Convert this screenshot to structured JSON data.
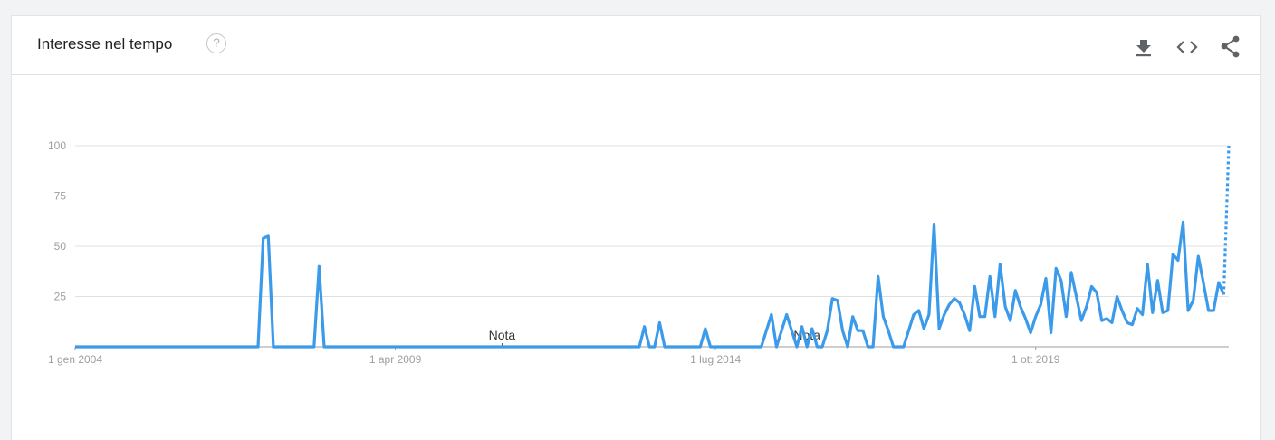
{
  "header": {
    "title": "Interesse nel tempo",
    "help_glyph": "?",
    "actions": [
      {
        "name": "download-icon"
      },
      {
        "name": "embed-icon"
      },
      {
        "name": "share-icon"
      }
    ]
  },
  "colors": {
    "line": "#3b9bea",
    "grid": "#e0e0e0",
    "axis": "#9e9e9e"
  },
  "chart_data": {
    "type": "line",
    "title": "Interesse nel tempo",
    "x_start": "2004-01",
    "x_step": "1 month",
    "x_ticks": [
      {
        "label": "1 gen 2004",
        "index": 0
      },
      {
        "label": "1 apr 2009",
        "index": 63
      },
      {
        "label": "1 lug 2014",
        "index": 126
      },
      {
        "label": "1 ott 2019",
        "index": 189
      }
    ],
    "ylim": [
      0,
      100
    ],
    "y_ticks": [
      25,
      50,
      75,
      100
    ],
    "grid": true,
    "annotations": [
      {
        "label": "Nota",
        "index": 84
      },
      {
        "label": "Nota",
        "index": 144
      }
    ],
    "series": [
      {
        "values": [
          0,
          0,
          0,
          0,
          0,
          0,
          0,
          0,
          0,
          0,
          0,
          0,
          0,
          0,
          0,
          0,
          0,
          0,
          0,
          0,
          0,
          0,
          0,
          0,
          0,
          0,
          0,
          0,
          0,
          0,
          0,
          0,
          0,
          0,
          0,
          0,
          0,
          54,
          55,
          0,
          0,
          0,
          0,
          0,
          0,
          0,
          0,
          0,
          40,
          0,
          0,
          0,
          0,
          0,
          0,
          0,
          0,
          0,
          0,
          0,
          0,
          0,
          0,
          0,
          0,
          0,
          0,
          0,
          0,
          0,
          0,
          0,
          0,
          0,
          0,
          0,
          0,
          0,
          0,
          0,
          0,
          0,
          0,
          0,
          0,
          0,
          0,
          0,
          0,
          0,
          0,
          0,
          0,
          0,
          0,
          0,
          0,
          0,
          0,
          0,
          0,
          0,
          0,
          0,
          0,
          0,
          0,
          0,
          0,
          0,
          0,
          0,
          10,
          0,
          0,
          12,
          0,
          0,
          0,
          0,
          0,
          0,
          0,
          0,
          9,
          0,
          0,
          0,
          0,
          0,
          0,
          0,
          0,
          0,
          0,
          0,
          8,
          16,
          0,
          8,
          16,
          8,
          0,
          10,
          0,
          9,
          0,
          0,
          8,
          24,
          23,
          8,
          0,
          15,
          8,
          8,
          0,
          0,
          35,
          15,
          8,
          0,
          0,
          0,
          8,
          16,
          18,
          9,
          16,
          61,
          9,
          16,
          21,
          24,
          22,
          16,
          8,
          30,
          15,
          15,
          35,
          15,
          41,
          20,
          13,
          28,
          20,
          14,
          7,
          15,
          21,
          34,
          7,
          39,
          33,
          15,
          37,
          25,
          13,
          20,
          30,
          27,
          13,
          14,
          12,
          25,
          18,
          12,
          11,
          19,
          16,
          41,
          17,
          33,
          17,
          18,
          46,
          43,
          62,
          18,
          23,
          45,
          32,
          18,
          18,
          32,
          26
        ]
      },
      {
        "dashed": true,
        "values_tail": [
          26,
          100
        ]
      }
    ]
  }
}
